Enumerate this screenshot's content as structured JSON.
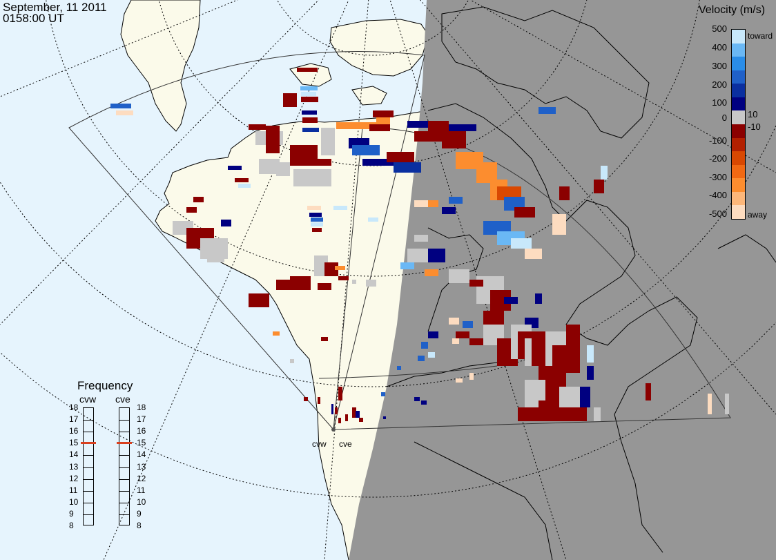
{
  "header": {
    "date": "September, 11 2011",
    "time": "0158:00 UT"
  },
  "colorbar": {
    "title": "Velocity (m/s)",
    "ticks": [
      "500",
      "400",
      "300",
      "200",
      "100",
      "10",
      "0",
      "-10",
      "-100",
      "-200",
      "-300",
      "-400",
      "-500"
    ],
    "toward_label": "toward",
    "away_label": "away",
    "colors": [
      "#fddcc0",
      "#fdb77a",
      "#fc8d2f",
      "#f16913",
      "#d94801",
      "#b32000",
      "#8b0000",
      "#c8c8c8",
      "#000080",
      "#0a2fa0",
      "#1f60c8",
      "#2a8de8",
      "#6ab8f5",
      "#c8e8fb"
    ]
  },
  "frequency_panel": {
    "title": "Frequency",
    "radars": [
      {
        "name": "cvw",
        "selected_mhz": 15
      },
      {
        "name": "cve",
        "selected_mhz": 15
      }
    ],
    "scale": [
      "18",
      "17",
      "16",
      "15",
      "14",
      "13",
      "12",
      "11",
      "10",
      "9",
      "8"
    ]
  },
  "radar_sites": [
    {
      "name": "cvw"
    },
    {
      "name": "cve"
    }
  ],
  "map_colors": {
    "ocean": "#e6f4fd",
    "land_day": "#fbfaea",
    "night": "#969696",
    "gray_scatter": "#c8c8c8"
  }
}
